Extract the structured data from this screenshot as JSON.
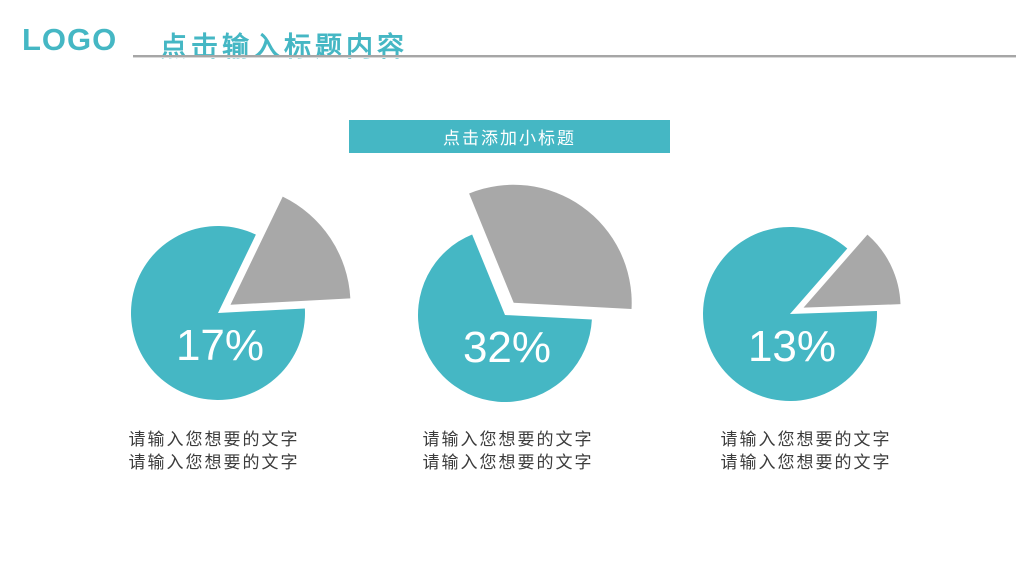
{
  "header": {
    "logo": "LOGO",
    "title": "点击输入标题内容"
  },
  "subtitle_banner": {
    "label": "点击添加小标题"
  },
  "colors": {
    "accent_teal": "#45b7c4",
    "slice_gray": "#a8a8a8",
    "header_line_gray": "#a6a6a6",
    "caption_text": "#3c3c3c",
    "percent_label": "#ffffff"
  },
  "chart_data": {
    "type": "pie",
    "title": "点击添加小标题",
    "legend": "none",
    "description": "Three exploded pie charts; teal body shows remainder, gray exploded slice shows the labeled percentage",
    "series": [
      {
        "label": "17%",
        "value": 17,
        "remainder": 83,
        "caption": [
          "请输入您想要的文字",
          "请输入您想要的文字"
        ],
        "center": [
          218,
          313
        ],
        "radius": 87,
        "start_angle": 3,
        "end_angle": 64.2,
        "explode_radius": 120,
        "explode_offset": 15
      },
      {
        "label": "32%",
        "value": 32,
        "remainder": 68,
        "caption": [
          "请输入您想要的文字",
          "请输入您想要的文字"
        ],
        "center": [
          505,
          315
        ],
        "radius": 87,
        "start_angle": -3,
        "end_angle": 112.2,
        "explode_radius": 118,
        "explode_offset": 15
      },
      {
        "label": "13%",
        "value": 13,
        "remainder": 87,
        "caption": [
          "请输入您想要的文字",
          "请输入您想要的文字"
        ],
        "center": [
          790,
          314
        ],
        "radius": 87,
        "start_angle": 2,
        "end_angle": 48.8,
        "explode_radius": 97,
        "explode_offset": 15
      }
    ],
    "colors": {
      "main_slice": "#45b7c4",
      "exploded_slice": "#a8a8a8"
    },
    "label_font_size": 44
  }
}
